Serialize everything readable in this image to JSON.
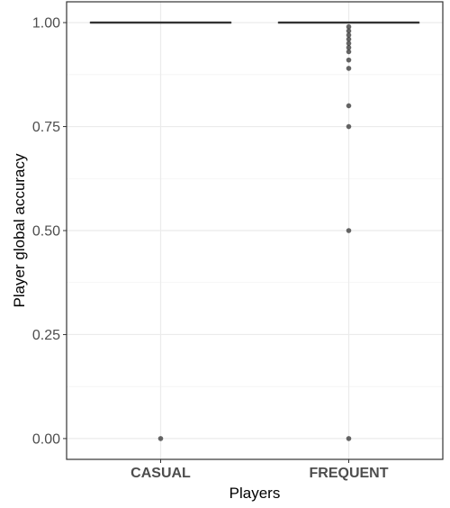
{
  "chart_data": {
    "type": "boxplot",
    "xlabel": "Players",
    "ylabel": "Player global accuracy",
    "categories": [
      "CASUAL",
      "FREQUENT"
    ],
    "ylim": [
      -0.05,
      1.05
    ],
    "y_ticks": [
      0.0,
      0.25,
      0.5,
      0.75,
      1.0
    ],
    "y_tick_labels": [
      "0.00",
      "0.25",
      "0.50",
      "0.75",
      "1.00"
    ],
    "grid": true,
    "legend": "none",
    "boxes": [
      {
        "category": "CASUAL",
        "q1": 1.0,
        "median": 1.0,
        "q3": 1.0,
        "outliers": [
          0.0
        ]
      },
      {
        "category": "FREQUENT",
        "q1": 1.0,
        "median": 1.0,
        "q3": 1.0,
        "outliers": [
          0.99,
          0.98,
          0.97,
          0.96,
          0.95,
          0.94,
          0.93,
          0.91,
          0.89,
          0.8,
          0.75,
          0.5,
          0.0
        ]
      }
    ],
    "colors": {
      "box_line": "#333333",
      "point": "#333333",
      "grid_major": "#ebebeb",
      "grid_minor": "#f2f2f2",
      "panel_border": "#333333",
      "tick_label": "#4d4d4d"
    }
  }
}
